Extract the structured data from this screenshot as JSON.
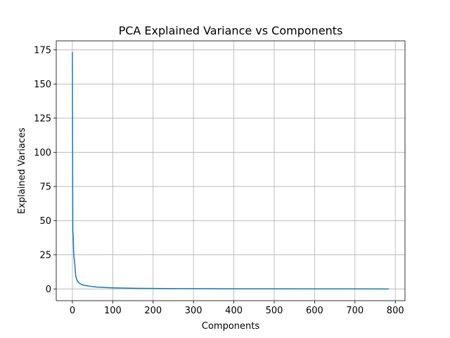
{
  "chart_data": {
    "type": "line",
    "title": "PCA Explained Variance vs Components",
    "xlabel": "Components",
    "ylabel": "Explained Variaces",
    "xlim": [
      -40,
      824
    ],
    "ylim": [
      -8.6,
      181.6
    ],
    "xticks": [
      0,
      100,
      200,
      300,
      400,
      500,
      600,
      700,
      800
    ],
    "yticks": [
      0,
      25,
      50,
      75,
      100,
      125,
      150,
      175
    ],
    "grid": true,
    "series": [
      {
        "color": "#1f77b4",
        "x": [
          0,
          1,
          2,
          3,
          4,
          5,
          6,
          7,
          8,
          10,
          12,
          15,
          20,
          25,
          30,
          40,
          50,
          60,
          80,
          100,
          150,
          200,
          300,
          400,
          500,
          600,
          700,
          783
        ],
        "y": [
          173,
          42,
          40,
          28,
          23,
          21,
          18,
          14,
          10,
          7.5,
          6,
          4.8,
          3.6,
          3.0,
          2.6,
          2.1,
          1.7,
          1.4,
          1.05,
          0.8,
          0.5,
          0.35,
          0.2,
          0.12,
          0.08,
          0.05,
          0.02,
          0.0
        ]
      }
    ]
  }
}
